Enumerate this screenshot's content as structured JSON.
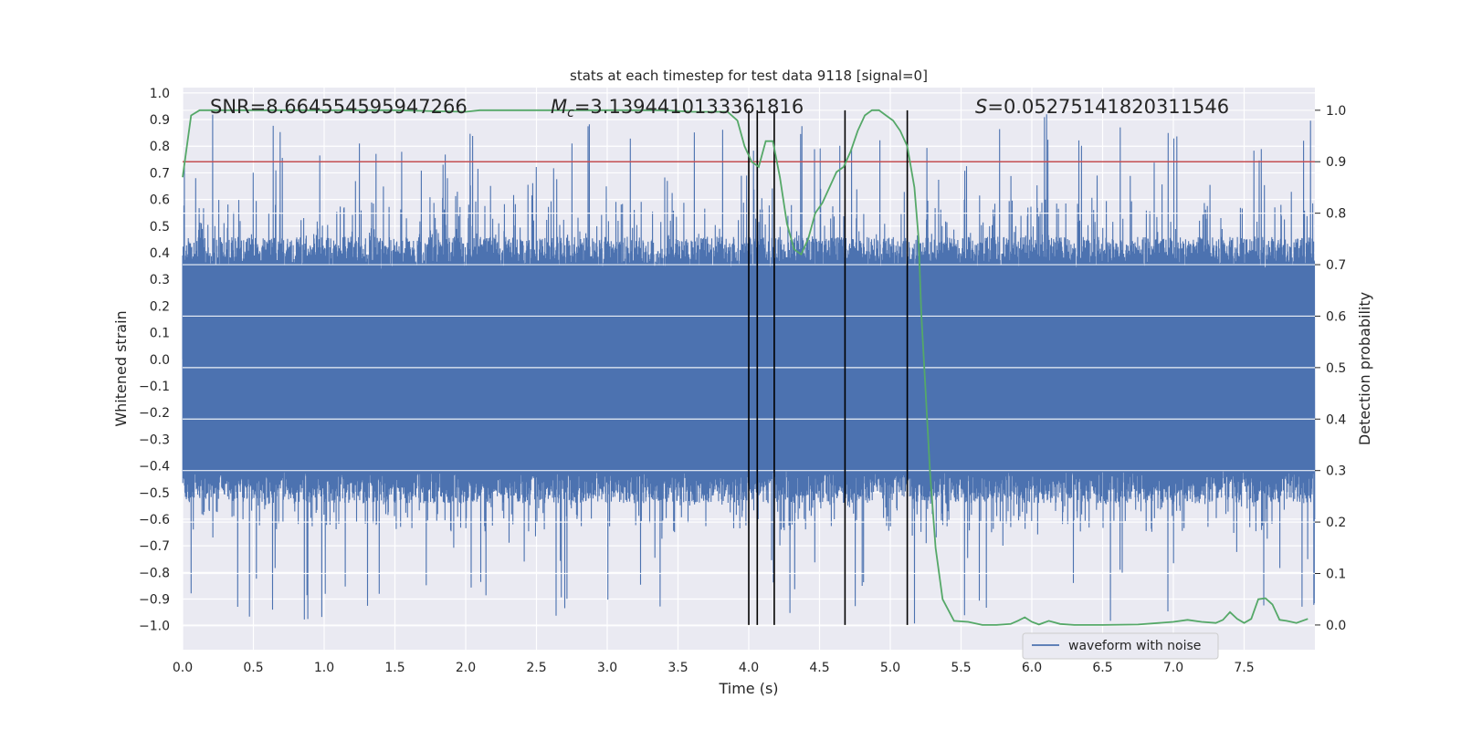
{
  "chart_data": {
    "type": "line",
    "title": "stats at each timestep for test data 9118 [signal=0]",
    "xlabel": "Time (s)",
    "ylabel": "Whitened strain",
    "y2label": "Detection probability",
    "xlim": [
      0,
      8.0
    ],
    "ylim": [
      -1.09,
      1.02
    ],
    "y2lim": [
      -0.048,
      1.044
    ],
    "xticks": [
      "0.0",
      "0.5",
      "1.0",
      "1.5",
      "2.0",
      "2.5",
      "3.0",
      "3.5",
      "4.0",
      "4.5",
      "5.0",
      "5.5",
      "6.0",
      "6.5",
      "7.0",
      "7.5"
    ],
    "yticks": [
      "1.0",
      "0.9",
      "0.8",
      "0.7",
      "0.6",
      "0.5",
      "0.4",
      "0.3",
      "0.2",
      "0.1",
      "0.0",
      "−0.1",
      "−0.2",
      "−0.3",
      "−0.4",
      "−0.5",
      "−0.6",
      "−0.7",
      "−0.8",
      "−0.9",
      "−1.0"
    ],
    "y2ticks": [
      "1.0",
      "0.9",
      "0.8",
      "0.7",
      "0.6",
      "0.5",
      "0.4",
      "0.3",
      "0.2",
      "0.1",
      "0.0"
    ],
    "grid": true,
    "legend_position": "lower-right",
    "colors": {
      "waveform": "#4c72b0",
      "probability": "#55a868",
      "threshold": "#c44e52",
      "markers": "#000000",
      "background": "#eaeaf2"
    },
    "annotations": {
      "snr_label": "SNR=8.664554595947266",
      "mc_prefix": "M",
      "mc_sub": "c",
      "mc_value": "=3.1394410133361816",
      "s_prefix": "S",
      "s_value": "=0.05275141820311546"
    },
    "threshold_probability": 0.9,
    "vertical_markers_x": [
      4.0,
      4.06,
      4.18,
      4.68,
      5.12
    ],
    "series": [
      {
        "name": "waveform with noise",
        "kind": "noise",
        "typical_min": -0.42,
        "typical_max": 0.34,
        "peak_max": 0.92,
        "peak_min": -1.0
      },
      {
        "kind": "probability",
        "x": [
          0.0,
          0.06,
          0.12,
          0.3,
          1.0,
          1.5,
          1.8,
          2.0,
          2.1,
          2.5,
          3.0,
          3.4,
          3.6,
          3.85,
          3.92,
          3.97,
          4.02,
          4.07,
          4.12,
          4.17,
          4.22,
          4.27,
          4.32,
          4.37,
          4.42,
          4.47,
          4.52,
          4.57,
          4.62,
          4.67,
          4.72,
          4.77,
          4.82,
          4.87,
          4.92,
          4.97,
          5.02,
          5.07,
          5.12,
          5.17,
          5.2,
          5.22,
          5.25,
          5.28,
          5.32,
          5.37,
          5.45,
          5.55,
          5.65,
          5.75,
          5.85,
          5.9,
          5.95,
          6.0,
          6.05,
          6.12,
          6.2,
          6.3,
          6.5,
          6.75,
          7.0,
          7.1,
          7.2,
          7.3,
          7.35,
          7.4,
          7.45,
          7.5,
          7.55,
          7.6,
          7.65,
          7.7,
          7.75,
          7.8,
          7.87,
          7.95
        ],
        "y": [
          0.87,
          0.99,
          1.0,
          1.0,
          1.0,
          1.0,
          0.998,
          0.997,
          1.0,
          1.0,
          1.0,
          1.0,
          0.997,
          0.997,
          0.98,
          0.93,
          0.9,
          0.89,
          0.94,
          0.94,
          0.87,
          0.78,
          0.73,
          0.72,
          0.75,
          0.8,
          0.82,
          0.85,
          0.88,
          0.89,
          0.92,
          0.96,
          0.99,
          1.0,
          1.0,
          0.99,
          0.98,
          0.96,
          0.93,
          0.85,
          0.75,
          0.6,
          0.45,
          0.3,
          0.15,
          0.05,
          0.008,
          0.006,
          0.0,
          0.0,
          0.002,
          0.008,
          0.015,
          0.006,
          0.001,
          0.008,
          0.002,
          0.0,
          0.0,
          0.001,
          0.006,
          0.01,
          0.006,
          0.004,
          0.01,
          0.025,
          0.012,
          0.004,
          0.012,
          0.05,
          0.052,
          0.04,
          0.01,
          0.008,
          0.004,
          0.012
        ]
      }
    ]
  }
}
